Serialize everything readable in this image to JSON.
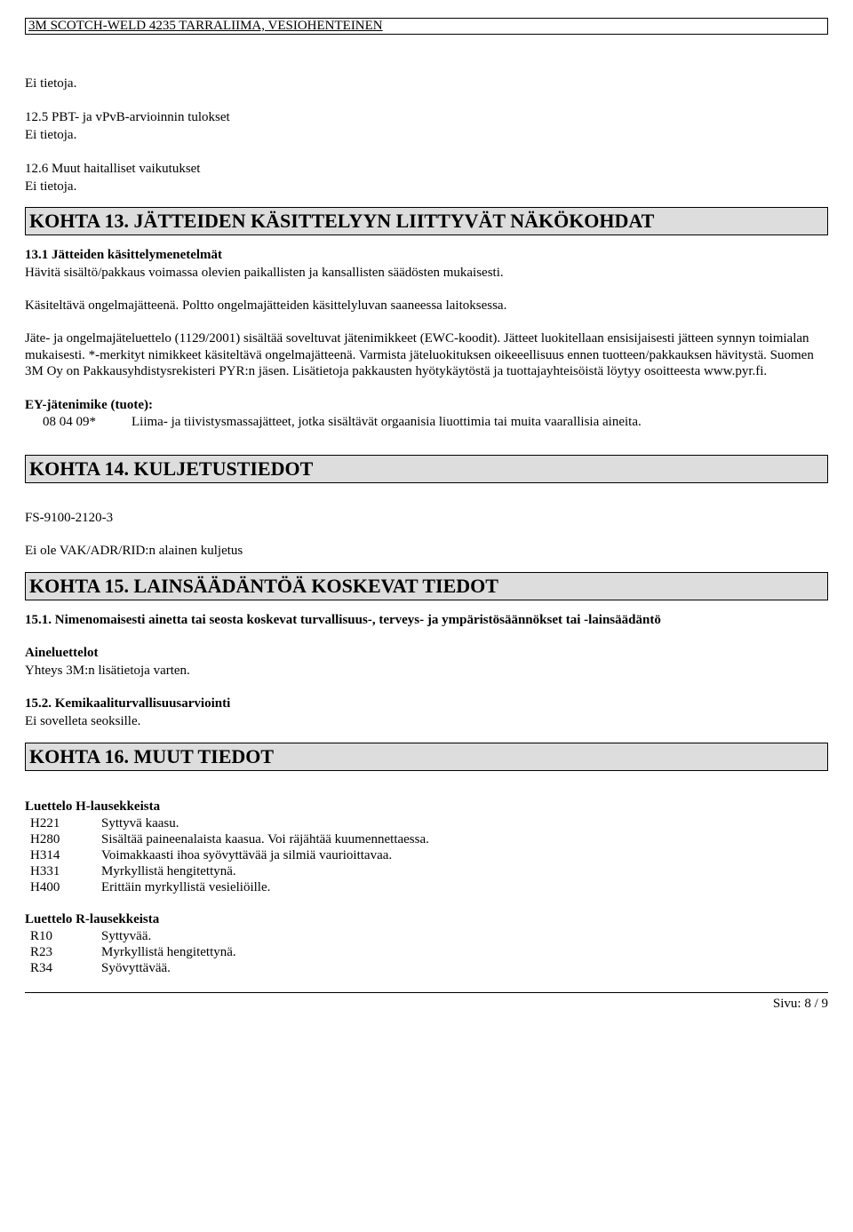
{
  "header": {
    "title": "3M SCOTCH-WELD 4235 TARRALIIMA, VESIOHENTEINEN"
  },
  "intro": {
    "line1": "Ei tietoja.",
    "sub125": "12.5 PBT- ja vPvB-arvioinnin tulokset",
    "sub125_body": "Ei tietoja.",
    "sub126": "12.6 Muut haitalliset vaikutukset",
    "sub126_body": "Ei tietoja."
  },
  "section13": {
    "title": "KOHTA 13. JÄTTEIDEN KÄSITTELYYN LIITTYVÄT NÄKÖKOHDAT",
    "sub131_title": "13.1 Jätteiden käsittelymenetelmät",
    "sub131_body1": "Hävitä sisältö/pakkaus voimassa olevien paikallisten ja kansallisten säädösten mukaisesti.",
    "sub131_body2": "Käsiteltävä ongelmajätteenä. Poltto ongelmajätteiden käsittelyluvan saaneessa laitoksessa.",
    "sub131_body3": "Jäte- ja ongelmajäteluettelo (1129/2001) sisältää soveltuvat jätenimikkeet (EWC-koodit). Jätteet luokitellaan ensisijaisesti jätteen synnyn toimialan mukaisesti. *-merkityt nimikkeet käsiteltävä ongelmajätteenä. Varmista jäteluokituksen oikeeellisuus ennen tuotteen/pakkauksen hävitystä. Suomen 3M Oy on Pakkausyhdistysrekisteri PYR:n jäsen. Lisätietoja pakkausten hyötykäytöstä ja tuottajayhteisöistä löytyy osoitteesta www.pyr.fi.",
    "ey_label": "EY-jätenimike (tuote):",
    "ey_code": "08 04 09*",
    "ey_desc": "Liima- ja tiivistysmassajätteet, jotka sisältävät orgaanisia liuottimia tai muita vaarallisia aineita."
  },
  "section14": {
    "title": "KOHTA 14. KULJETUSTIEDOT",
    "body1": "FS-9100-2120-3",
    "body2": "Ei ole VAK/ADR/RID:n alainen kuljetus"
  },
  "section15": {
    "title": "KOHTA 15. LAINSÄÄDÄNTÖÄ KOSKEVAT TIEDOT",
    "sub151": "15.1. Nimenomaisesti ainetta tai seosta koskevat turvallisuus-, terveys- ja ympäristösäännökset tai -lainsäädäntö",
    "aine_label": "Aineluettelot",
    "aine_body": "Yhteys 3M:n lisätietoja varten.",
    "sub152": "15.2. Kemikaaliturvallisuusarviointi",
    "sub152_body": "Ei sovelleta seoksille."
  },
  "section16": {
    "title": "KOHTA 16. MUUT TIEDOT",
    "h_label": "Luettelo H-lausekkeista",
    "h_items": [
      {
        "code": "H221",
        "desc": "Syttyvä kaasu."
      },
      {
        "code": "H280",
        "desc": "Sisältää paineenalaista kaasua. Voi räjähtää kuumennettaessa."
      },
      {
        "code": "H314",
        "desc": "Voimakkaasti ihoa syövyttävää ja silmiä vaurioittavaa."
      },
      {
        "code": "H331",
        "desc": "Myrkyllistä hengitettynä."
      },
      {
        "code": "H400",
        "desc": "Erittäin myrkyllistä vesieliöille."
      }
    ],
    "r_label": "Luettelo R-lausekkeista",
    "r_items": [
      {
        "code": "R10",
        "desc": "Syttyvää."
      },
      {
        "code": "R23",
        "desc": "Myrkyllistä hengitettynä."
      },
      {
        "code": "R34",
        "desc": "Syövyttävää."
      }
    ]
  },
  "footer": {
    "text": "Sivu: 8 /  9"
  }
}
